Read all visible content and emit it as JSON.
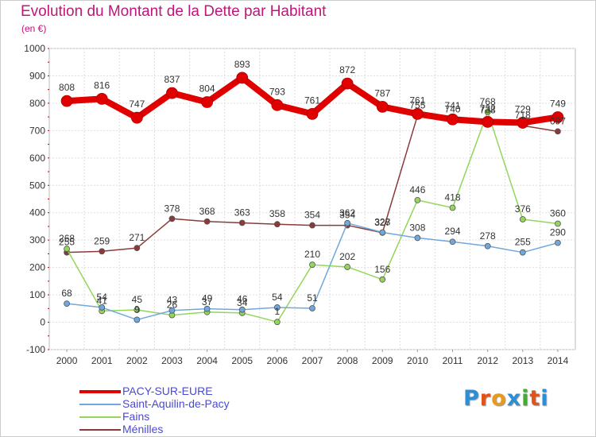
{
  "title": "Evolution du Montant de la Dette par Habitant",
  "unit": "(en €)",
  "logo": {
    "text": "Proxiti",
    "letters": [
      "P",
      "r",
      "o",
      "x",
      "i",
      "t",
      "i"
    ],
    "colors": [
      "#2b8fd6",
      "#e0541a",
      "#e89a1a",
      "#2b8fd6",
      "#4aa83a",
      "#e0541a",
      "#2b8fd6"
    ]
  },
  "chart_data": {
    "type": "line",
    "title": "Evolution du Montant de la Dette par Habitant",
    "ylabel": "(en €)",
    "xlabel": "",
    "x": [
      "2000",
      "2001",
      "2002",
      "2003",
      "2004",
      "2005",
      "2006",
      "2007",
      "2008",
      "2009",
      "2010",
      "2011",
      "2012",
      "2013",
      "2014"
    ],
    "yticks": [
      "-100",
      "0",
      "100",
      "200",
      "300",
      "400",
      "500",
      "600",
      "700",
      "800",
      "900",
      "1000"
    ],
    "ylim": [
      -100,
      1000
    ],
    "grid": true,
    "legend": "bottom-left",
    "series": [
      {
        "name": "PACY-SUR-EURE",
        "color": "#e00000",
        "emphasis": true,
        "values": [
          808,
          816,
          747,
          837,
          804,
          893,
          793,
          761,
          872,
          787,
          761,
          741,
          732,
          729,
          749
        ],
        "labels": [
          "808",
          "816",
          "747",
          "837",
          "804",
          "893",
          "793",
          "761",
          "872",
          "787",
          "761",
          "741",
          "732",
          "729",
          "749"
        ]
      },
      {
        "name": "Saint-Aquilin-de-Pacy",
        "color": "#6fa8dc",
        "values": [
          68,
          54,
          9,
          43,
          49,
          46,
          54,
          51,
          362,
          328,
          308,
          294,
          278,
          255,
          290
        ],
        "labels": [
          "68",
          "54",
          "9",
          "43",
          "49",
          "46",
          "54",
          "51",
          "362",
          "328",
          "308",
          "294",
          "278",
          "255",
          "290"
        ]
      },
      {
        "name": "Fains",
        "color": "#93d65a",
        "values": [
          268,
          41,
          45,
          26,
          37,
          34,
          1,
          210,
          202,
          156,
          446,
          418,
          768,
          376,
          360
        ],
        "labels": [
          "268",
          "41",
          "45",
          "26",
          "37",
          "34",
          "1",
          "210",
          "202",
          "156",
          "446",
          "418",
          "768",
          "376",
          "360"
        ]
      },
      {
        "name": "Ménilles",
        "color": "#8b3a3a",
        "values": [
          255,
          259,
          271,
          378,
          368,
          363,
          358,
          354,
          354,
          327,
          755,
          740,
          738,
          718,
          697
        ],
        "labels": [
          "255",
          "259",
          "271",
          "378",
          "368",
          "363",
          "358",
          "354",
          "354",
          "327",
          "755",
          "740",
          "738",
          "718",
          "697"
        ]
      }
    ]
  }
}
